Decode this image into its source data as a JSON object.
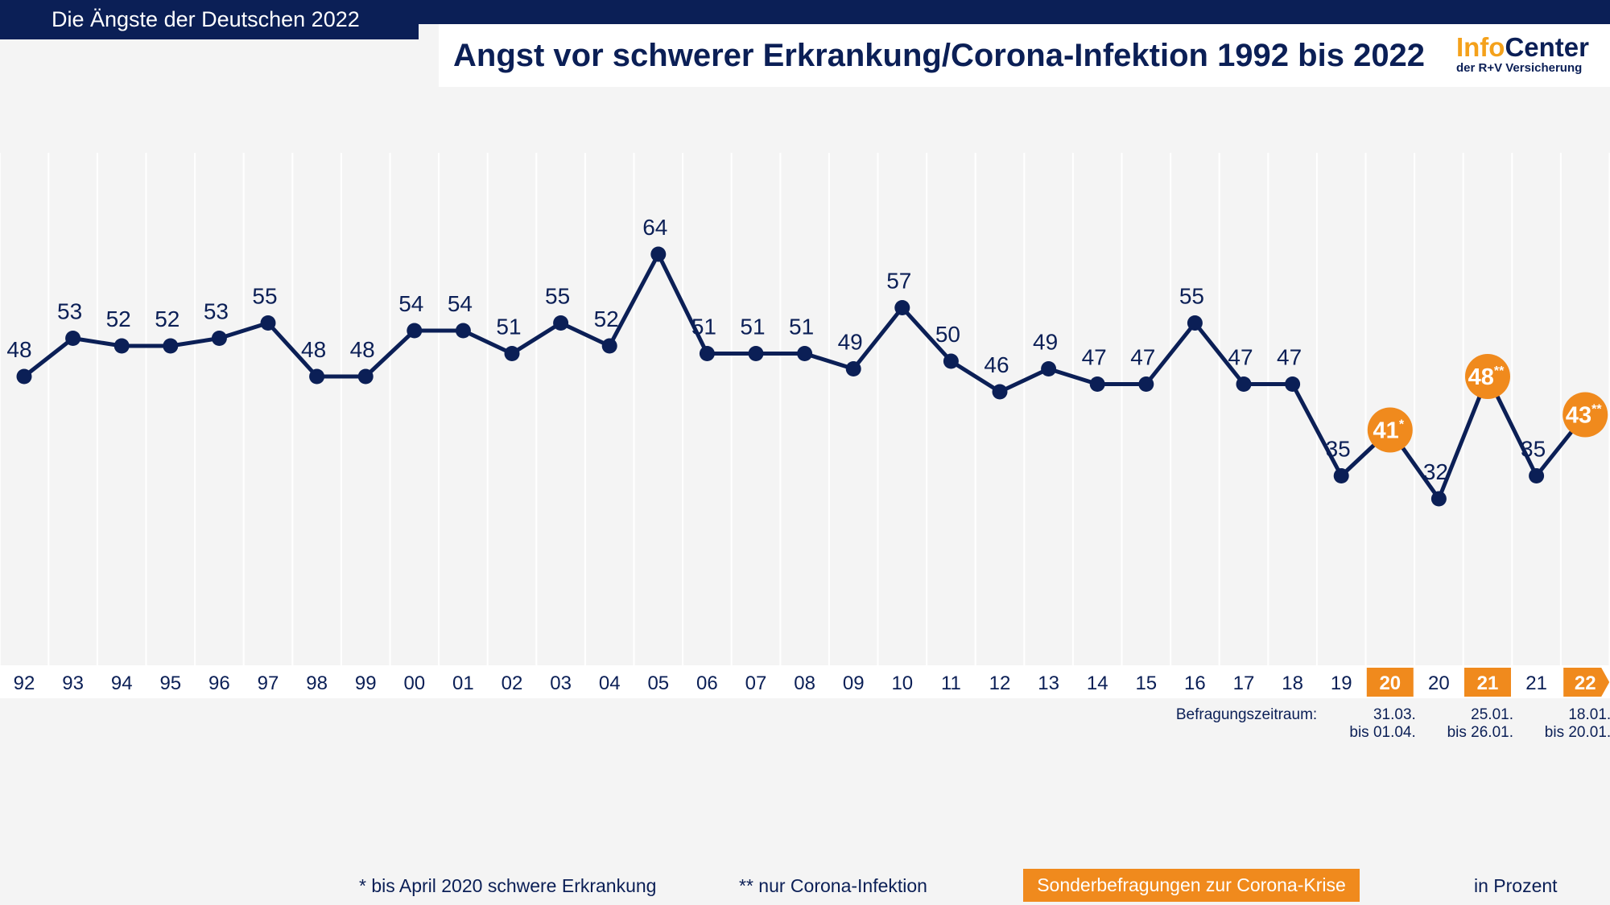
{
  "header": {
    "series_title": "Die Ängste der Deutschen 2022",
    "logo_info": "Info",
    "logo_center": "Center",
    "logo_sub": "der R+V Versicherung"
  },
  "chart_data": {
    "type": "line",
    "title": "Angst vor schwerer Erkrankung/Corona-Infektion 1992 bis 2022",
    "unit": "in Prozent",
    "ylim": [
      0,
      100
    ],
    "grid": true,
    "categories": [
      "92",
      "93",
      "94",
      "95",
      "96",
      "97",
      "98",
      "99",
      "00",
      "01",
      "02",
      "03",
      "04",
      "05",
      "06",
      "07",
      "08",
      "09",
      "10",
      "11",
      "12",
      "13",
      "14",
      "15",
      "16",
      "17",
      "18",
      "19",
      "20",
      "20",
      "21",
      "21",
      "22"
    ],
    "values": [
      48,
      53,
      52,
      52,
      53,
      55,
      48,
      48,
      54,
      54,
      51,
      55,
      52,
      64,
      51,
      51,
      51,
      49,
      57,
      50,
      46,
      49,
      47,
      47,
      55,
      47,
      47,
      35,
      41,
      32,
      48,
      35,
      43
    ],
    "markers": [
      "",
      "",
      "",
      "",
      "",
      "",
      "",
      "",
      "",
      "",
      "",
      "",
      "",
      "",
      "",
      "",
      "",
      "",
      "",
      "",
      "",
      "",
      "",
      "",
      "",
      "",
      "",
      "",
      "*",
      "",
      "**",
      "",
      "**"
    ],
    "special_survey": [
      false,
      false,
      false,
      false,
      false,
      false,
      false,
      false,
      false,
      false,
      false,
      false,
      false,
      false,
      false,
      false,
      false,
      false,
      false,
      false,
      false,
      false,
      false,
      false,
      false,
      false,
      false,
      false,
      true,
      false,
      true,
      false,
      true
    ],
    "survey_period_label": "Befragungszeitraum:",
    "survey_periods": [
      {
        "index": 28,
        "line1": "31.03.",
        "line2": "bis 01.04."
      },
      {
        "index": 30,
        "line1": "25.01.",
        "line2": "bis 26.01."
      },
      {
        "index": 32,
        "line1": "18.01.",
        "line2": "bis 20.01."
      }
    ],
    "colors": {
      "line": "#0b1f56",
      "special": "#f08a1d",
      "grid": "#ffffff"
    }
  },
  "footer": {
    "note1": "* bis April 2020 schwere Erkrankung",
    "note2": "** nur Corona-Infektion",
    "badge": "Sonderbefragungen zur Corona-Krise",
    "unit": "in Prozent"
  }
}
